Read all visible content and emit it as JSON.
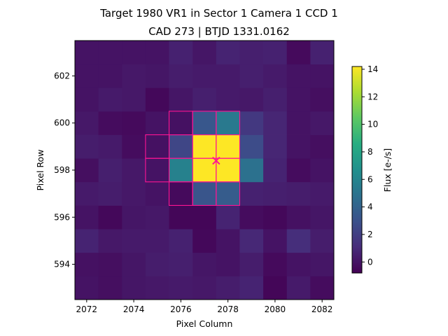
{
  "chart_data": {
    "type": "heatmap",
    "title_line1": "Target 1980 VR1 in Sector 1 Camera 1 CCD 1",
    "title_line2": "CAD 273 | BTJD 1331.0162",
    "xlabel": "Pixel Column",
    "ylabel": "Pixel Row",
    "colorbar_label": "Flux [e-/s]",
    "colormap": "viridis",
    "vmin": -0.8,
    "vmax": 14.2,
    "x_range": [
      2071.5,
      2082.5
    ],
    "y_range": [
      592.5,
      603.5
    ],
    "x_ticks": [
      2072,
      2074,
      2076,
      2078,
      2080,
      2082
    ],
    "y_ticks": [
      594,
      596,
      598,
      600,
      602
    ],
    "colorbar_ticks": [
      0,
      2,
      4,
      6,
      8,
      10,
      12,
      14
    ],
    "col_start": 2072,
    "row_start": 593,
    "values": [
      [
        0.0,
        -0.2,
        0.1,
        0.2,
        0.3,
        0.2,
        0.4,
        0.7,
        -0.6,
        0.3,
        -0.3
      ],
      [
        -0.1,
        -0.2,
        0.1,
        0.4,
        0.5,
        0.1,
        0.0,
        0.4,
        -0.4,
        0.0,
        0.1
      ],
      [
        0.7,
        0.2,
        0.3,
        0.3,
        0.6,
        -0.5,
        0.0,
        0.9,
        0.0,
        1.2,
        0.4
      ],
      [
        0.0,
        -0.5,
        0.1,
        0.2,
        -0.6,
        -0.6,
        0.7,
        -0.3,
        -0.5,
        -0.1,
        0.1
      ],
      [
        0.3,
        0.4,
        0.2,
        0.0,
        -0.4,
        3.2,
        3.6,
        0.6,
        0.5,
        0.4,
        0.3
      ],
      [
        -0.2,
        0.5,
        0.2,
        0.0,
        5.8,
        14.2,
        14.2,
        4.8,
        0.7,
        -0.3,
        0.0
      ],
      [
        0.4,
        0.3,
        -0.3,
        -0.1,
        2.4,
        14.2,
        14.2,
        2.7,
        0.8,
        0.0,
        -0.2
      ],
      [
        0.2,
        -0.3,
        -0.4,
        0.0,
        -0.1,
        3.3,
        5.3,
        1.7,
        0.8,
        0.0,
        0.2
      ],
      [
        0.0,
        0.3,
        0.2,
        -0.5,
        0.1,
        0.5,
        0.3,
        0.2,
        0.5,
        0.0,
        -0.2
      ],
      [
        0.0,
        0.0,
        0.2,
        0.1,
        0.4,
        0.3,
        0.3,
        0.5,
        0.3,
        0.0,
        0.0
      ],
      [
        0.0,
        0.0,
        0.0,
        0.0,
        0.6,
        0.1,
        0.7,
        0.5,
        0.6,
        -0.4,
        0.6
      ]
    ],
    "aperture_pixels": [
      [
        2076,
        597
      ],
      [
        2077,
        597
      ],
      [
        2078,
        597
      ],
      [
        2075,
        598
      ],
      [
        2076,
        598
      ],
      [
        2077,
        598
      ],
      [
        2078,
        598
      ],
      [
        2075,
        599
      ],
      [
        2076,
        599
      ],
      [
        2077,
        599
      ],
      [
        2078,
        599
      ],
      [
        2076,
        600
      ],
      [
        2077,
        600
      ],
      [
        2078,
        600
      ]
    ],
    "aperture_color": "#ff1493",
    "target_marker": {
      "x": 2077.5,
      "y": 598.4,
      "symbol": "x",
      "color": "#ff1493"
    }
  }
}
